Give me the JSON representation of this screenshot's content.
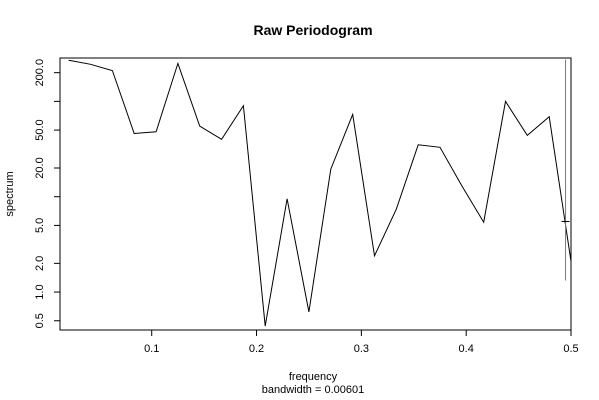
{
  "chart_data": {
    "type": "line",
    "title": "Raw Periodogram",
    "xlabel": "frequency",
    "ylabel": "spectrum",
    "subtitle": "bandwidth = 0.00601",
    "xlim": [
      0.0125,
      0.5
    ],
    "ylim": [
      0.4,
      285
    ],
    "log_y": true,
    "grid": false,
    "xticks": [
      0.1,
      0.2,
      0.3,
      0.4,
      0.5
    ],
    "xtick_labels": [
      "0.1",
      "0.2",
      "0.3",
      "0.4",
      "0.5"
    ],
    "yticks": [
      0.5,
      1.0,
      2.0,
      5.0,
      20.0,
      50.0,
      200.0
    ],
    "ytick_labels": [
      "0.5",
      "1.0",
      "2.0",
      "5.0",
      "20.0",
      "50.0",
      "200.0"
    ],
    "yticks_minor": [
      10,
      100
    ],
    "series": [
      {
        "x": [
          0.0208,
          0.0417,
          0.0625,
          0.0833,
          0.1042,
          0.125,
          0.1458,
          0.1667,
          0.1875,
          0.2083,
          0.2292,
          0.25,
          0.2708,
          0.2917,
          0.3125,
          0.3333,
          0.3542,
          0.375,
          0.3958,
          0.4167,
          0.4375,
          0.4583,
          0.4792,
          0.5
        ],
        "y": [
          270,
          245,
          210,
          46,
          48,
          250,
          55,
          40,
          90,
          0.44,
          9.5,
          0.62,
          19.5,
          73,
          2.4,
          7.4,
          35,
          33,
          13,
          5.4,
          100,
          44,
          69,
          2.1
        ],
        "color": "#000000"
      }
    ],
    "ci_bar": {
      "x": 0.4948,
      "center": 5.5,
      "low": 1.32,
      "high": 275,
      "color": "#6666ff"
    }
  }
}
